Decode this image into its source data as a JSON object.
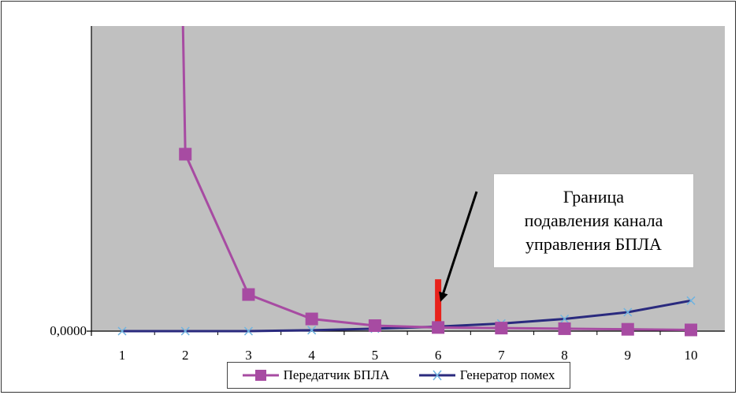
{
  "chart_data": {
    "type": "line",
    "title": "",
    "xlabel": "",
    "ylabel": "",
    "categories": [
      "1",
      "2",
      "3",
      "4",
      "5",
      "6",
      "7",
      "8",
      "9",
      "10"
    ],
    "ylim": [
      0,
      1
    ],
    "y_tick_labels": [
      "0,0000"
    ],
    "series": [
      {
        "name": "Передатчик БПЛА",
        "color": "#a74ba2",
        "marker": "square",
        "values": [
          null,
          0.58,
          0.12,
          0.04,
          0.018,
          0.012,
          0.01,
          0.008,
          0.006,
          0.004
        ],
        "offscale_start": {
          "x": "2",
          "value": 1.0
        }
      },
      {
        "name": "Генератор помех",
        "color": "#2a2a7e",
        "marker": "x",
        "values": [
          0.0,
          0.0,
          0.0,
          0.003,
          0.008,
          0.015,
          0.025,
          0.04,
          0.062,
          0.1
        ]
      }
    ],
    "threshold": {
      "x": "6",
      "value": 0.17,
      "color": "#e8221b"
    },
    "annotation": {
      "lines": [
        "Граница",
        "подавления канала",
        "управления БПЛА"
      ]
    },
    "legend_position": "bottom",
    "grid": false,
    "plot_background": "#c0c0c0"
  }
}
